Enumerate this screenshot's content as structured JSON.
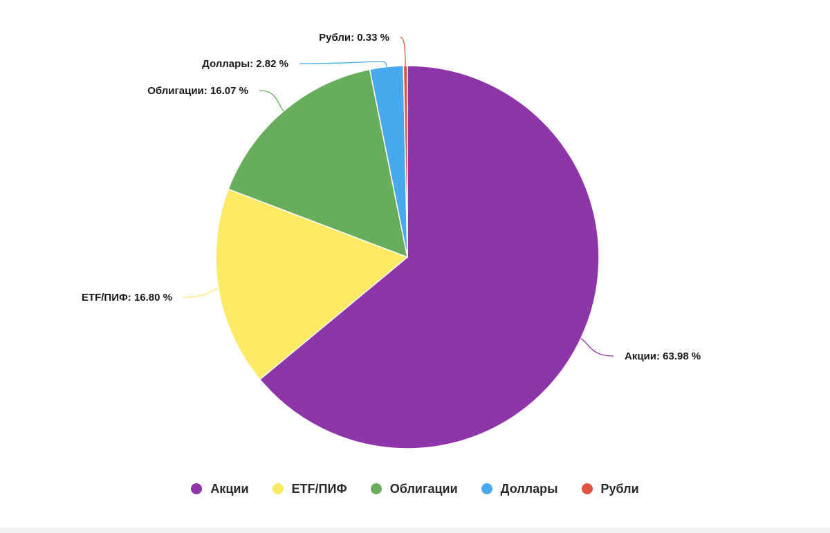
{
  "chart_data": {
    "type": "pie",
    "categories": [
      "Акции",
      "ETF/ПИФ",
      "Облигации",
      "Доллары",
      "Рубли"
    ],
    "values": [
      63.98,
      16.8,
      16.07,
      2.82,
      0.33
    ],
    "labels": [
      "Акции: 63.98 %",
      "ETF/ПИФ: 16.80 %",
      "Облигации: 16.07 %",
      "Доллары: 2.82 %",
      "Рубли: 0.33 %"
    ],
    "colors": [
      "#8e36a9",
      "#fce964",
      "#67ad5b",
      "#48a9ee",
      "#e4513f"
    ],
    "legend_position": "bottom",
    "start_angle": "top, clockwise"
  },
  "legend": [
    {
      "label": "Акции",
      "color": "#8e36a9"
    },
    {
      "label": "ETF/ПИФ",
      "color": "#fce964"
    },
    {
      "label": "Облигации",
      "color": "#67ad5b"
    },
    {
      "label": "Доллары",
      "color": "#48a9ee"
    },
    {
      "label": "Рубли",
      "color": "#e4513f"
    }
  ]
}
